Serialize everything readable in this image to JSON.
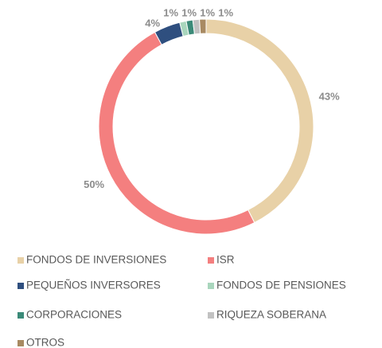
{
  "chart_data": {
    "type": "donut",
    "categories": [
      "FONDOS DE INVERSIONES",
      "ISR",
      "PEQUEÑOS INVERSORES",
      "FONDOS DE PENSIONES",
      "CORPORACIONES",
      "RIQUEZA SOBERANA",
      "OTROS"
    ],
    "values": [
      43,
      50,
      4,
      1,
      1,
      1,
      1
    ],
    "value_labels": [
      "43%",
      "50%",
      "4%",
      "1%",
      "1%",
      "1%",
      "1%"
    ],
    "colors": [
      "#e8d1a7",
      "#f47f7f",
      "#2f4f7f",
      "#a9d6bd",
      "#3b8a78",
      "#c2c2c2",
      "#a88a62"
    ],
    "legend": "bottom"
  }
}
